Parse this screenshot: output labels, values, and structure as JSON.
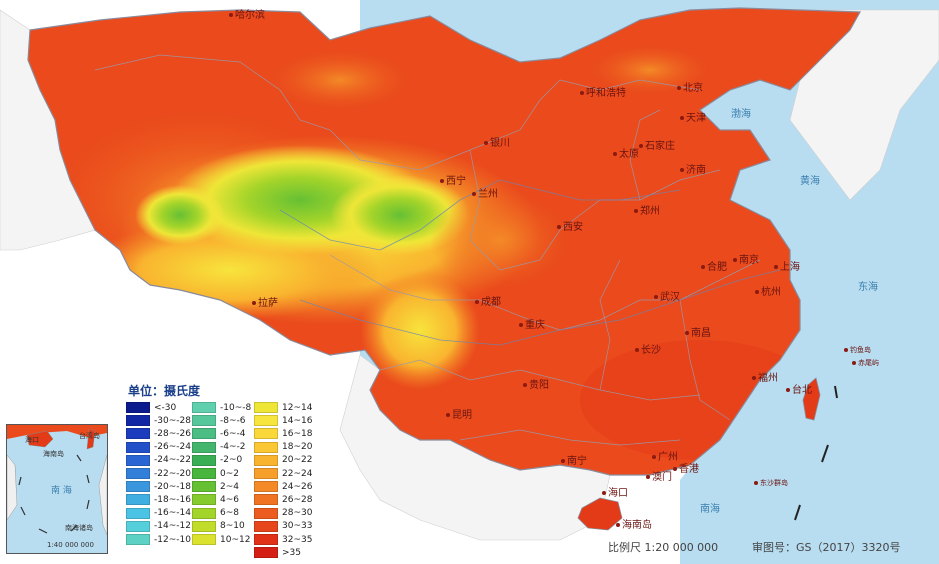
{
  "legend": {
    "title": "单位：摄氏度",
    "col1": [
      {
        "label": "<-30",
        "color": "#0b1a8c"
      },
      {
        "label": "-30~-28",
        "color": "#1227a4"
      },
      {
        "label": "-28~-26",
        "color": "#1a3cbd"
      },
      {
        "label": "-26~-24",
        "color": "#2150c9"
      },
      {
        "label": "-24~-22",
        "color": "#2a66d3"
      },
      {
        "label": "-22~-20",
        "color": "#327fd9"
      },
      {
        "label": "-20~-18",
        "color": "#3a97de"
      },
      {
        "label": "-18~-16",
        "color": "#41aee2"
      },
      {
        "label": "-16~-14",
        "color": "#4bc3e4"
      },
      {
        "label": "-14~-12",
        "color": "#55cfd9"
      },
      {
        "label": "-12~-10",
        "color": "#5dd2c4"
      }
    ],
    "col2": [
      {
        "label": "-10~-8",
        "color": "#5fcfae"
      },
      {
        "label": "-8~-6",
        "color": "#55c79a"
      },
      {
        "label": "-6~-4",
        "color": "#4cbe84"
      },
      {
        "label": "-4~-2",
        "color": "#43b56d"
      },
      {
        "label": "-2~0",
        "color": "#3aae55"
      },
      {
        "label": "0~2",
        "color": "#48b53c"
      },
      {
        "label": "2~4",
        "color": "#66c034"
      },
      {
        "label": "4~6",
        "color": "#85ca2e"
      },
      {
        "label": "6~8",
        "color": "#a3d42a"
      },
      {
        "label": "8~10",
        "color": "#c2dc2a"
      },
      {
        "label": "10~12",
        "color": "#dbe22e"
      }
    ],
    "col3": [
      {
        "label": "12~14",
        "color": "#eee637"
      },
      {
        "label": "14~16",
        "color": "#f7e43c"
      },
      {
        "label": "16~18",
        "color": "#fbd83a"
      },
      {
        "label": "18~20",
        "color": "#fbc735"
      },
      {
        "label": "20~22",
        "color": "#f9b42f"
      },
      {
        "label": "22~24",
        "color": "#f79f2b"
      },
      {
        "label": "24~26",
        "color": "#f48a27"
      },
      {
        "label": "26~28",
        "color": "#f07324"
      },
      {
        "label": "28~30",
        "color": "#ec5c20"
      },
      {
        "label": "30~33",
        "color": "#e7461c"
      },
      {
        "label": "32~35",
        "color": "#e13218"
      },
      {
        "label": ">35",
        "color": "#d41f14"
      }
    ]
  },
  "cities": {
    "harbin": "哈尔滨",
    "hohhot": "呼和浩特",
    "beijing": "北京",
    "tianjin": "天津",
    "shijiazhuang": "石家庄",
    "taiyuan": "太原",
    "jinan": "济南",
    "yinchuan": "银川",
    "xining": "西宁",
    "lanzhou": "兰州",
    "xian": "西安",
    "zhengzhou": "郑州",
    "hefei": "合肥",
    "nanjing": "南京",
    "shanghai": "上海",
    "hangzhou": "杭州",
    "wuhan": "武汉",
    "changsha": "长沙",
    "nanchang": "南昌",
    "chengdu": "成都",
    "chongqing": "重庆",
    "lhasa": "拉萨",
    "guiyang": "贵阳",
    "kunming": "昆明",
    "fuzhou": "福州",
    "taipei": "台北",
    "nanning": "南宁",
    "guangzhou": "广州",
    "hongkong": "香港",
    "macau": "澳门",
    "haikou": "海口",
    "hainan": "海南岛",
    "diaoyu": "钓鱼岛",
    "chiwei": "赤尾屿",
    "dongsha": "东沙群岛"
  },
  "seas": {
    "bohai": "渤海",
    "yellow": "黄海",
    "east": "东海",
    "south": "南海"
  },
  "inset": {
    "haikou": "海口",
    "hainan": "海南岛",
    "taiwan": "台湾岛",
    "south_sea": "南 海",
    "islands": "南海诸岛",
    "scale": "1:40 000 000"
  },
  "footer": {
    "scale": "比例尺  1:20 000 000",
    "approval": "审图号：GS（2017）3320号"
  },
  "colors": {
    "sea": "#b8dcf0",
    "hot": "#ea4a1c",
    "border": "#9a9aaa"
  }
}
